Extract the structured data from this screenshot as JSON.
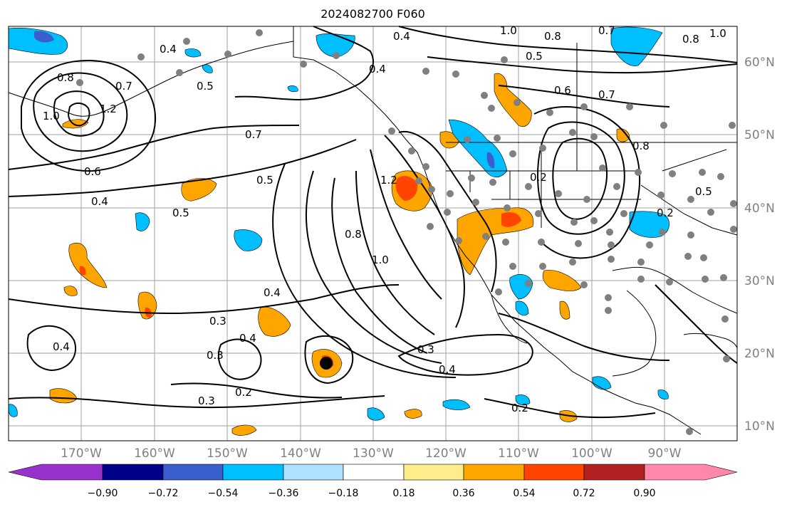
{
  "title": "2024082700 F060",
  "longitude_labels": [
    "170°W",
    "160°W",
    "150°W",
    "140°W",
    "130°W",
    "120°W",
    "110°W",
    "100°W",
    "90°W"
  ],
  "latitude_labels": [
    "60°N",
    "50°N",
    "40°N",
    "30°N",
    "20°N",
    "10°N"
  ],
  "colorbar": {
    "tick_labels": [
      "−0.90",
      "−0.72",
      "−0.54",
      "−0.36",
      "−0.18",
      "0.18",
      "0.36",
      "0.54",
      "0.72",
      "0.90"
    ],
    "colors": [
      "#9932cc",
      "#00008b",
      "#3a5fcd",
      "#00bfff",
      "#b0e2ff",
      "#ffffff",
      "#ffec8b",
      "#ffa500",
      "#ff4500",
      "#b22222",
      "#ff88aa"
    ]
  },
  "contour_labels": [
    "0.4",
    "0.4",
    "0.5",
    "0.8",
    "0.7",
    "1.0",
    "1.2",
    "0.6",
    "0.7",
    "0.4",
    "0.5",
    "0.5",
    "0.4",
    "0.8",
    "1.0",
    "1.2",
    "0.3",
    "0.4",
    "0.3",
    "0.4",
    "0.4",
    "0.3",
    "0.2",
    "0.3",
    "0.4",
    "0.2",
    "1.0",
    "0.8",
    "0.5",
    "0.6",
    "0.7",
    "0.2",
    "0.5",
    "0.2",
    "0.8",
    "0.7",
    "0.8",
    "1.0"
  ],
  "colors": {
    "warm_orange": "#ffa500",
    "warm_red": "#ff4500",
    "cool_blue": "#00bfff",
    "grid": "#a0a0a0",
    "station_dot": "#808080"
  }
}
